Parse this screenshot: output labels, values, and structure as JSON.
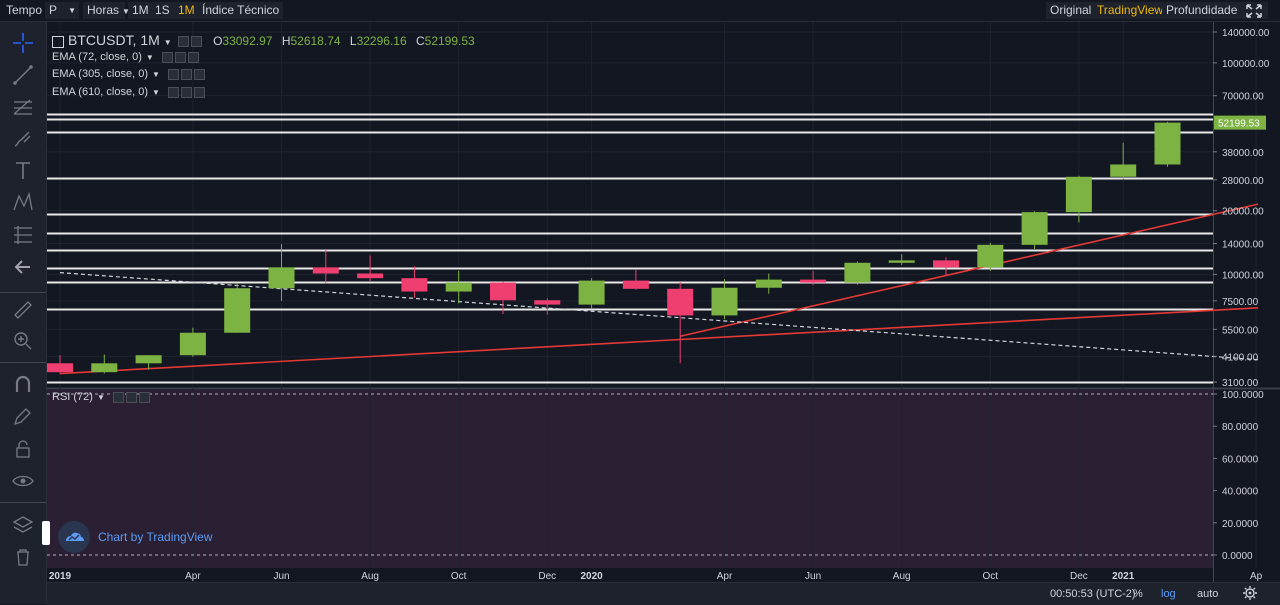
{
  "topbar": {
    "tempo": "Tempo",
    "period_select": "P",
    "hours_select": "Horas",
    "interval_1m_lower": "1M",
    "interval_1s": "1S",
    "interval_1m_active": "1M",
    "indicators": "Índice Técnico",
    "view_original": "Original",
    "view_tradingview": "TradingView",
    "view_depth": "Profundidade",
    "accent_color": "#f0b90b"
  },
  "legend": {
    "symbol": "BTCUSDT, 1M",
    "o_label": "O",
    "o_value": "33092.97",
    "h_label": "H",
    "h_value": "52618.74",
    "l_label": "L",
    "l_value": "32296.16",
    "c_label": "C",
    "c_value": "52199.53",
    "ema1": "EMA (72, close, 0)",
    "ema2": "EMA (305, close, 0)",
    "ema3": "EMA (610, close, 0)",
    "rsi": "RSI (72)"
  },
  "branding": {
    "text": "Chart by TradingView"
  },
  "bottombar": {
    "clock": "00:50:53 (UTC-2)",
    "percent": "%",
    "log": "log",
    "auto": "auto"
  },
  "chart_data": [
    {
      "type": "candlestick",
      "scale": "log",
      "up_color": "#7cb342",
      "down_color": "#ef3f71",
      "last_price": "52199.53",
      "y_ticks": [
        140000,
        100000,
        70000,
        52199.53,
        38000,
        28000,
        20000,
        14000,
        10000,
        7500,
        5500,
        4100,
        3100
      ],
      "y_tick_labels": [
        "140000.00",
        "100000.00",
        "70000.00",
        "38000.00",
        "28000.00",
        "20000.00",
        "14000.00",
        "10000.00",
        "7500.00",
        "5500.00",
        "4100.00",
        "3100.00"
      ],
      "x_tick_labels": [
        "2019",
        "Apr",
        "Jun",
        "Aug",
        "Oct",
        "Dec",
        "2020",
        "Apr",
        "Jun",
        "Aug",
        "Oct",
        "Dec",
        "2021",
        "Ap"
      ],
      "bold_x_ticks": [
        "2019",
        "2020",
        "2021"
      ],
      "ylim": [
        3000,
        160000
      ],
      "candles": [
        {
          "month": "2019-01",
          "o": 3800,
          "h": 4150,
          "l": 3400,
          "c": 3450
        },
        {
          "month": "2019-02",
          "o": 3450,
          "h": 4180,
          "l": 3400,
          "c": 3800
        },
        {
          "month": "2019-03",
          "o": 3800,
          "h": 4150,
          "l": 3550,
          "c": 4150
        },
        {
          "month": "2019-04",
          "o": 4150,
          "h": 5600,
          "l": 4080,
          "c": 5300
        },
        {
          "month": "2019-05",
          "o": 5300,
          "h": 9100,
          "l": 5300,
          "c": 8600
        },
        {
          "month": "2019-06",
          "o": 8600,
          "h": 13900,
          "l": 7500,
          "c": 10800
        },
        {
          "month": "2019-07",
          "o": 10800,
          "h": 13200,
          "l": 9100,
          "c": 10100
        },
        {
          "month": "2019-08",
          "o": 10100,
          "h": 12300,
          "l": 9300,
          "c": 9600
        },
        {
          "month": "2019-09",
          "o": 9600,
          "h": 10950,
          "l": 7750,
          "c": 8300
        },
        {
          "month": "2019-10",
          "o": 8300,
          "h": 10400,
          "l": 7300,
          "c": 9150
        },
        {
          "month": "2019-11",
          "o": 9150,
          "h": 9300,
          "l": 6500,
          "c": 7550
        },
        {
          "month": "2019-12",
          "o": 7550,
          "h": 7700,
          "l": 6450,
          "c": 7200
        },
        {
          "month": "2020-01",
          "o": 7200,
          "h": 9600,
          "l": 6850,
          "c": 9350
        },
        {
          "month": "2020-02",
          "o": 9350,
          "h": 10500,
          "l": 8450,
          "c": 8550
        },
        {
          "month": "2020-03",
          "o": 8550,
          "h": 9200,
          "l": 3800,
          "c": 6400
        },
        {
          "month": "2020-04",
          "o": 6400,
          "h": 9500,
          "l": 6150,
          "c": 8650
        },
        {
          "month": "2020-05",
          "o": 8650,
          "h": 10100,
          "l": 8100,
          "c": 9450
        },
        {
          "month": "2020-06",
          "o": 9450,
          "h": 10400,
          "l": 8900,
          "c": 9150
        },
        {
          "month": "2020-07",
          "o": 9150,
          "h": 11500,
          "l": 8950,
          "c": 11350
        },
        {
          "month": "2020-08",
          "o": 11350,
          "h": 12450,
          "l": 11100,
          "c": 11650
        },
        {
          "month": "2020-09",
          "o": 11650,
          "h": 12050,
          "l": 9900,
          "c": 10800
        },
        {
          "month": "2020-10",
          "o": 10800,
          "h": 14100,
          "l": 10400,
          "c": 13800
        },
        {
          "month": "2020-11",
          "o": 13800,
          "h": 19900,
          "l": 13200,
          "c": 19700
        },
        {
          "month": "2020-12",
          "o": 19700,
          "h": 29300,
          "l": 17600,
          "c": 28950
        },
        {
          "month": "2021-01",
          "o": 28950,
          "h": 41900,
          "l": 28100,
          "c": 33100
        },
        {
          "month": "2021-02",
          "o": 33092.97,
          "h": 52618.74,
          "l": 32296.16,
          "c": 52199.53
        }
      ],
      "horizontal_levels": [
        57500,
        54500,
        47000,
        28500,
        19200,
        15700,
        13000,
        10700,
        9200,
        6900,
        3100
      ],
      "trendlines": [
        {
          "style": "solid",
          "color": "#e53935",
          "from": {
            "month": "2019-01",
            "price": 3400
          },
          "to": {
            "month": "2021-04",
            "price": 6950
          }
        },
        {
          "style": "solid",
          "color": "#e53935",
          "from": {
            "month": "2020-03",
            "price": 5100
          },
          "to": {
            "month": "2021-04",
            "price": 21500
          }
        },
        {
          "style": "dashed",
          "color": "#d1d4dc",
          "from": {
            "month": "2019-01",
            "price": 10200
          },
          "to": {
            "month": "2021-04",
            "price": 3950
          }
        }
      ]
    },
    {
      "type": "line",
      "name": "RSI (72)",
      "ylim": [
        0,
        100
      ],
      "y_tick_labels": [
        "100.0000",
        "80.0000",
        "60.0000",
        "40.0000",
        "20.0000",
        "0.0000"
      ],
      "y_ticks": [
        100,
        80,
        60,
        40,
        20,
        0
      ],
      "dashed_levels": [
        100,
        0
      ]
    }
  ]
}
